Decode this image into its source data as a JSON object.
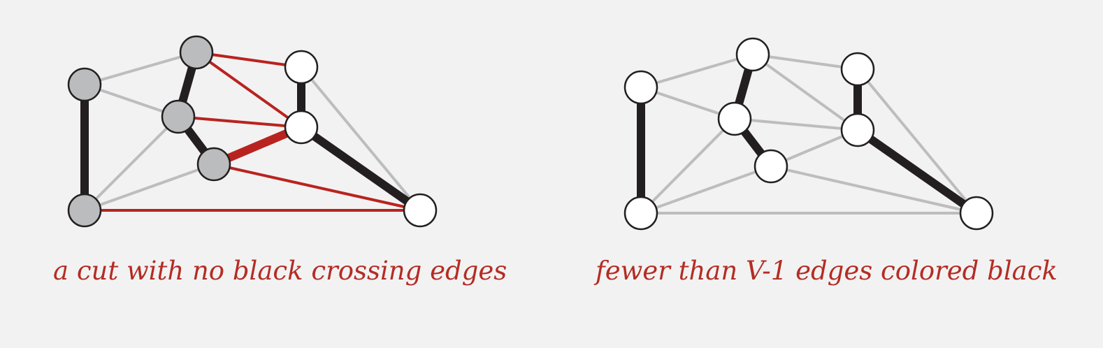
{
  "colors": {
    "background": "#f2f2f2",
    "edge_gray": "#bdbdbf",
    "edge_black": "#231f20",
    "edge_red": "#b9231f",
    "node_gray": "#bbbcbe",
    "node_white": "#ffffff",
    "node_stroke": "#231f20",
    "caption": "#b42c24"
  },
  "diagrams": [
    {
      "id": "cut",
      "caption": "a cut with no black crossing edges",
      "nodes": [
        {
          "id": "A",
          "fill": "gray"
        },
        {
          "id": "B",
          "fill": "gray"
        },
        {
          "id": "C",
          "fill": "white"
        },
        {
          "id": "D",
          "fill": "gray"
        },
        {
          "id": "E",
          "fill": "white"
        },
        {
          "id": "F",
          "fill": "gray"
        },
        {
          "id": "G",
          "fill": "gray"
        },
        {
          "id": "H",
          "fill": "white"
        }
      ],
      "edges": [
        {
          "from": "A",
          "to": "B",
          "style": "gray"
        },
        {
          "from": "A",
          "to": "D",
          "style": "gray"
        },
        {
          "from": "D",
          "to": "G",
          "style": "gray"
        },
        {
          "from": "F",
          "to": "G",
          "style": "gray"
        },
        {
          "from": "C",
          "to": "H",
          "style": "gray"
        },
        {
          "from": "A",
          "to": "G",
          "style": "black"
        },
        {
          "from": "B",
          "to": "D",
          "style": "black"
        },
        {
          "from": "D",
          "to": "F",
          "style": "black"
        },
        {
          "from": "C",
          "to": "E",
          "style": "black"
        },
        {
          "from": "E",
          "to": "H",
          "style": "black"
        },
        {
          "from": "B",
          "to": "C",
          "style": "red"
        },
        {
          "from": "B",
          "to": "E",
          "style": "red"
        },
        {
          "from": "D",
          "to": "E",
          "style": "red"
        },
        {
          "from": "F",
          "to": "E",
          "style": "red-thick"
        },
        {
          "from": "F",
          "to": "H",
          "style": "red"
        },
        {
          "from": "G",
          "to": "H",
          "style": "red"
        }
      ]
    },
    {
      "id": "fewer",
      "caption": "fewer than V-1 edges colored black",
      "nodes": [
        {
          "id": "A",
          "fill": "white"
        },
        {
          "id": "B",
          "fill": "white"
        },
        {
          "id": "C",
          "fill": "white"
        },
        {
          "id": "D",
          "fill": "white"
        },
        {
          "id": "E",
          "fill": "white"
        },
        {
          "id": "F",
          "fill": "white"
        },
        {
          "id": "G",
          "fill": "white"
        },
        {
          "id": "H",
          "fill": "white"
        }
      ],
      "edges": [
        {
          "from": "A",
          "to": "B",
          "style": "gray"
        },
        {
          "from": "A",
          "to": "D",
          "style": "gray"
        },
        {
          "from": "D",
          "to": "G",
          "style": "gray"
        },
        {
          "from": "F",
          "to": "G",
          "style": "gray"
        },
        {
          "from": "C",
          "to": "H",
          "style": "gray"
        },
        {
          "from": "B",
          "to": "C",
          "style": "gray"
        },
        {
          "from": "B",
          "to": "E",
          "style": "gray"
        },
        {
          "from": "D",
          "to": "E",
          "style": "gray"
        },
        {
          "from": "F",
          "to": "E",
          "style": "gray"
        },
        {
          "from": "F",
          "to": "H",
          "style": "gray"
        },
        {
          "from": "G",
          "to": "H",
          "style": "gray"
        },
        {
          "from": "A",
          "to": "G",
          "style": "black"
        },
        {
          "from": "B",
          "to": "D",
          "style": "black"
        },
        {
          "from": "D",
          "to": "F",
          "style": "black"
        },
        {
          "from": "C",
          "to": "E",
          "style": "black"
        },
        {
          "from": "E",
          "to": "H",
          "style": "black"
        }
      ]
    }
  ]
}
